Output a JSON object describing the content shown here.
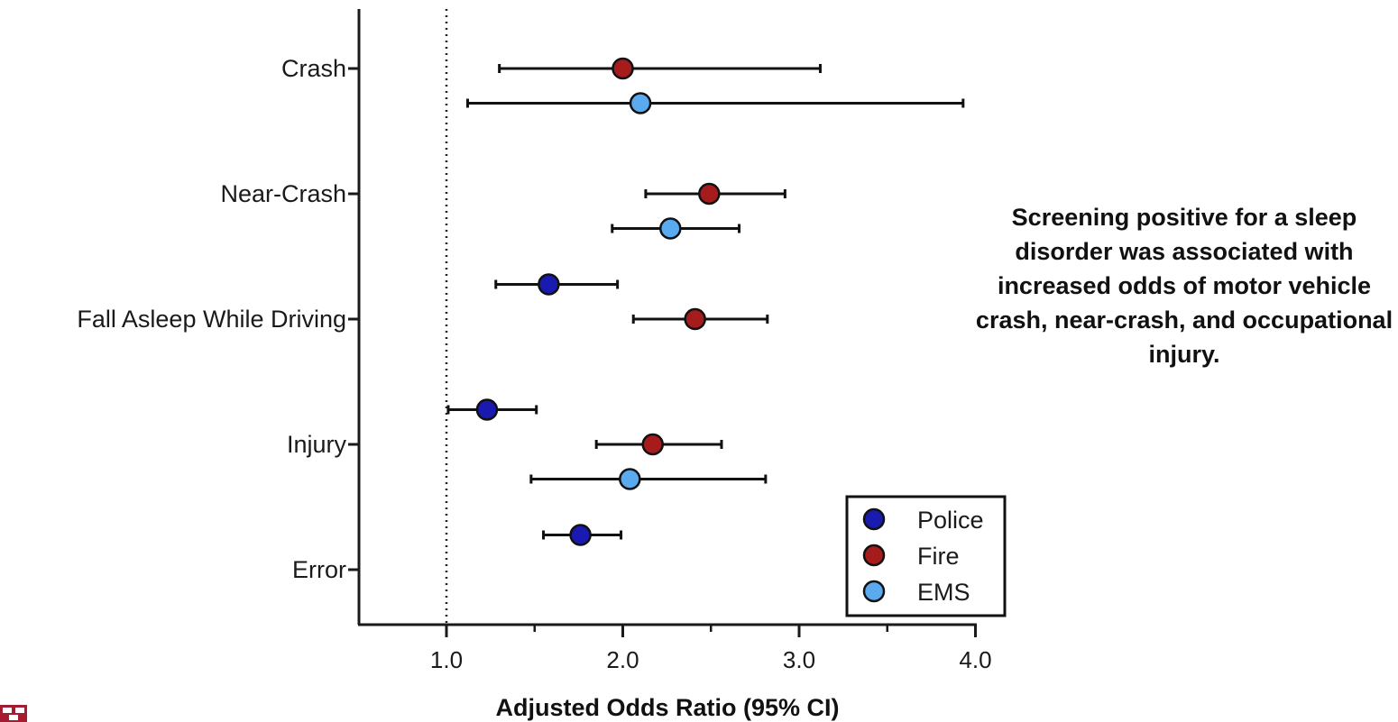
{
  "chart_data": {
    "type": "forest",
    "categories": [
      "Crash",
      "Near-Crash",
      "Fall Asleep While Driving",
      "Injury",
      "Error"
    ],
    "series": [
      {
        "name": "Police",
        "color": "#1a1ab0"
      },
      {
        "name": "Fire",
        "color": "#a61c1c"
      },
      {
        "name": "EMS",
        "color": "#5aaaf0"
      }
    ],
    "points": [
      {
        "category": "Crash",
        "series": "Fire",
        "or": 2.0,
        "lo": 1.3,
        "hi": 3.12
      },
      {
        "category": "Crash",
        "series": "EMS",
        "or": 2.1,
        "lo": 1.12,
        "hi": 3.93
      },
      {
        "category": "Near-Crash",
        "series": "Fire",
        "or": 2.49,
        "lo": 2.13,
        "hi": 2.92
      },
      {
        "category": "Near-Crash",
        "series": "EMS",
        "or": 2.27,
        "lo": 1.94,
        "hi": 2.66
      },
      {
        "category": "Fall Asleep While Driving",
        "series": "Police",
        "or": 1.58,
        "lo": 1.28,
        "hi": 1.97
      },
      {
        "category": "Fall Asleep While Driving",
        "series": "Fire",
        "or": 2.41,
        "lo": 2.06,
        "hi": 2.82
      },
      {
        "category": "Injury",
        "series": "Police",
        "or": 1.23,
        "lo": 1.01,
        "hi": 1.51
      },
      {
        "category": "Injury",
        "series": "Fire",
        "or": 2.17,
        "lo": 1.85,
        "hi": 2.56
      },
      {
        "category": "Injury",
        "series": "EMS",
        "or": 2.04,
        "lo": 1.48,
        "hi": 2.81
      },
      {
        "category": "Error",
        "series": "Police",
        "or": 1.76,
        "lo": 1.55,
        "hi": 1.99
      }
    ],
    "xlabel": "Adjusted Odds Ratio (95% CI)",
    "ylabel": "",
    "xlim": [
      0.5,
      4.0
    ],
    "xticks": [
      1.0,
      2.0,
      3.0,
      4.0
    ],
    "xtick_labels": [
      "1.0",
      "2.0",
      "3.0",
      "4.0"
    ],
    "reference_line": 1.0,
    "grid": false,
    "legend_position": "bottom-right",
    "annotation": "Screening positive for a sleep disorder was associated with increased odds of motor vehicle crash, near-crash, and occupational injury."
  }
}
